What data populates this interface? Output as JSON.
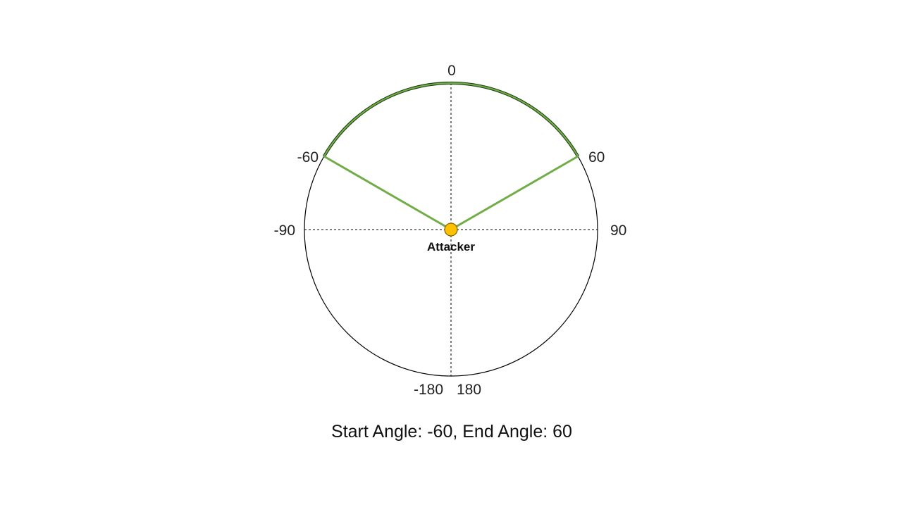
{
  "diagram": {
    "start_angle": -60,
    "end_angle": 60,
    "tick_labels": {
      "top": "0",
      "right": "90",
      "left": "-90",
      "bottom_left": "-180",
      "bottom_right": "180",
      "start": "-60",
      "end": "60"
    },
    "attacker_label": "Attacker",
    "caption": "Start Angle: -60, End Angle: 60",
    "colors": {
      "circle": "#000000",
      "arc": "#70ad47",
      "arc_outline": "#1f3a14",
      "attacker_fill": "#ffc000",
      "attacker_stroke": "#7f6000",
      "axis": "#000000"
    }
  }
}
